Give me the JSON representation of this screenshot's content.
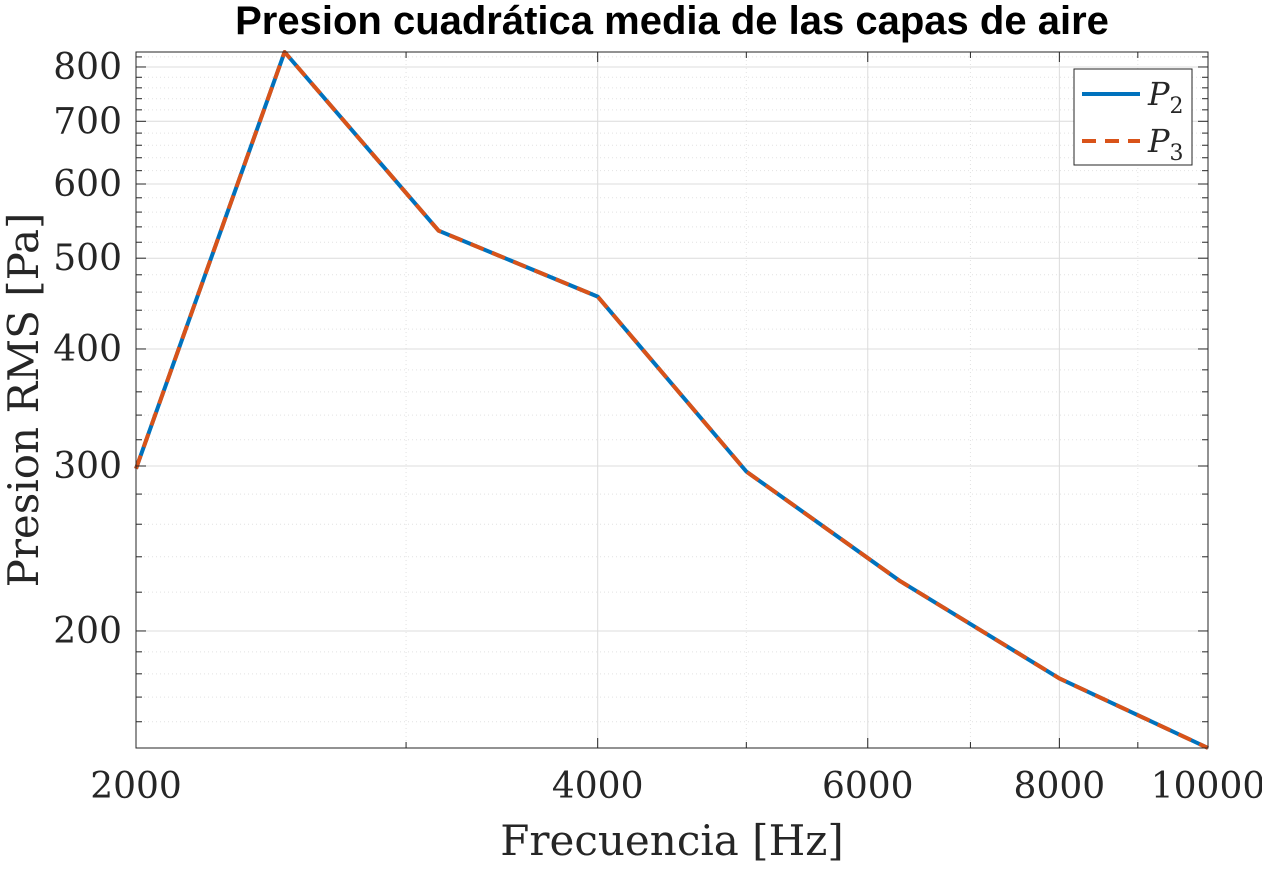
{
  "chart_data": {
    "type": "line",
    "title": "Presion cuadrática media de las capas de aire",
    "xlabel": "Frecuencia [Hz]",
    "ylabel": "Presion RMS [Pa]",
    "x_scale": "log",
    "y_scale": "log",
    "xlim": [
      2000,
      10000
    ],
    "ylim": [
      150,
      830
    ],
    "x_ticks": [
      2000,
      4000,
      6000,
      8000,
      10000
    ],
    "x_tick_labels": [
      "2000",
      "4000",
      "6000",
      "8000",
      "10000"
    ],
    "y_ticks": [
      200,
      300,
      400,
      500,
      600,
      700,
      800
    ],
    "y_tick_labels": [
      "200",
      "300",
      "400",
      "500",
      "600",
      "700",
      "800"
    ],
    "grid": true,
    "legend_position": "top-right",
    "x": [
      2000,
      2500,
      3150,
      4000,
      5000,
      6300,
      8000,
      10000
    ],
    "series": [
      {
        "name": "P",
        "subscript": "2",
        "color": "#0072BD",
        "dash": "solid",
        "values": [
          298,
          830,
          535,
          455,
          296,
          226,
          178,
          150
        ]
      },
      {
        "name": "P",
        "subscript": "3",
        "color": "#D95319",
        "dash": "dashed",
        "values": [
          298,
          830,
          535,
          455,
          296,
          226,
          178,
          150
        ]
      }
    ]
  }
}
